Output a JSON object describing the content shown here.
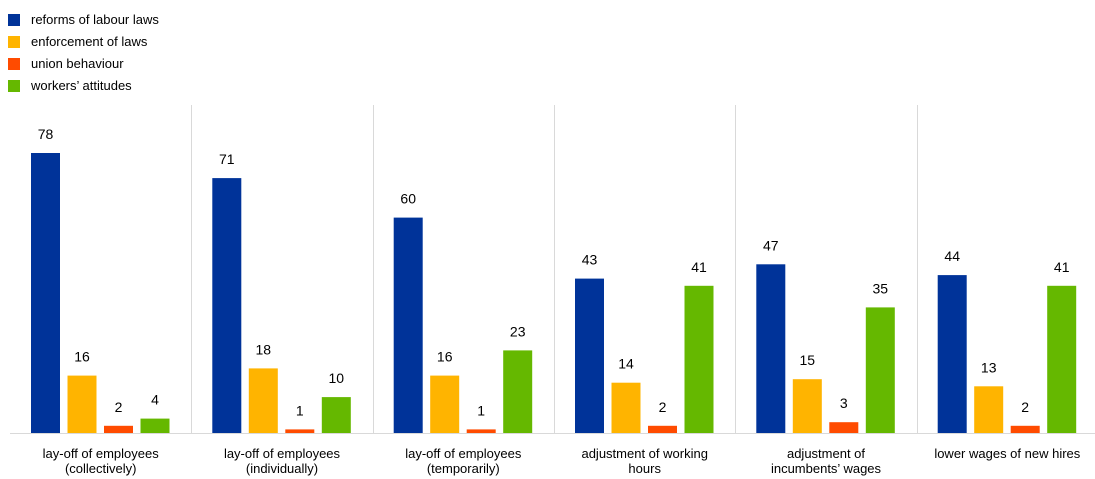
{
  "chart_data": {
    "type": "bar",
    "title": "",
    "xlabel": "",
    "ylabel": "",
    "ylim": [
      0,
      85
    ],
    "grid": false,
    "legend_position": "top-left",
    "categories": [
      [
        "lay-off of employees",
        "(collectively)"
      ],
      [
        "lay-off of employees",
        "(individually)"
      ],
      [
        "lay-off of employees",
        "(temporarily)"
      ],
      [
        "adjustment of working",
        "hours"
      ],
      [
        "adjustment of",
        "incumbents’ wages"
      ],
      [
        "lower wages of new hires"
      ]
    ],
    "series": [
      {
        "name": "reforms of labour laws",
        "color": "#003399",
        "values": [
          78,
          71,
          60,
          43,
          47,
          44
        ]
      },
      {
        "name": "enforcement of laws",
        "color": "#FFB400",
        "values": [
          16,
          18,
          16,
          14,
          15,
          13
        ]
      },
      {
        "name": "union behaviour",
        "color": "#FF4B00",
        "values": [
          2,
          1,
          1,
          2,
          3,
          2
        ]
      },
      {
        "name": "workers’ attitudes",
        "color": "#65B800",
        "values": [
          4,
          10,
          23,
          41,
          35,
          41
        ]
      }
    ],
    "separator_color": "#D9D9D9"
  }
}
